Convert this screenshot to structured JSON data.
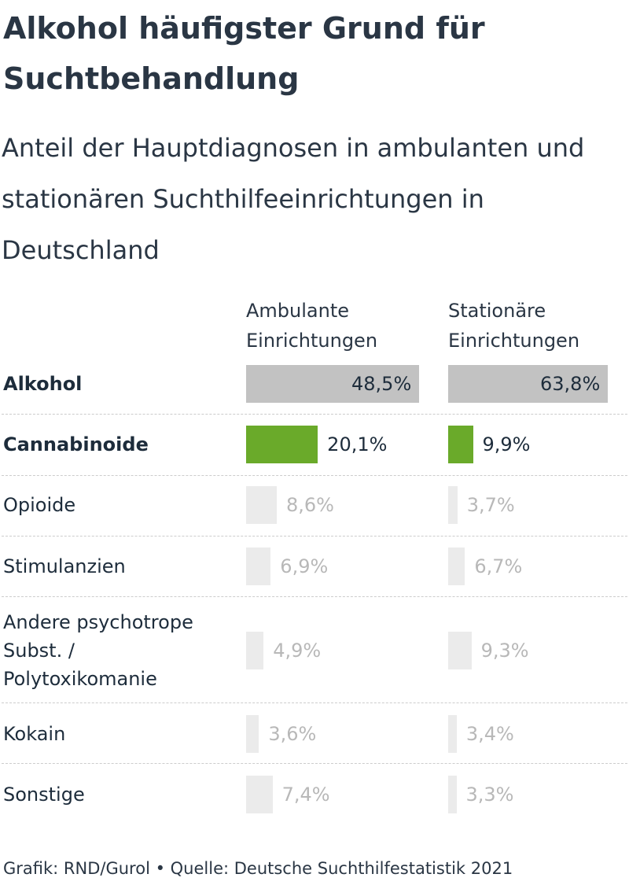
{
  "chart_data": {
    "type": "bar-table",
    "title": "Alkohol häufigster Grund für Suchtbehandlung",
    "subtitle": "Anteil der Hauptdiagnosen in ambulanten und stationären Suchthilfeeinrichtungen in Deutschland",
    "categories": [
      "Alkohol",
      "Cannabinoide",
      "Opioide",
      "Stimulanzien",
      "Andere psychotrope Subst. / Polytoxikomanie",
      "Kokain",
      "Sonstige"
    ],
    "bold_categories": [
      0,
      1
    ],
    "series": [
      {
        "name": "Ambulante Einrichtungen",
        "xlim": [
          0,
          48.5
        ],
        "colors": [
          "#c2c2c2",
          "#6aaa2a",
          "#ebebeb",
          "#ebebeb",
          "#ebebeb",
          "#ebebeb",
          "#ebebeb"
        ],
        "values": [
          48.5,
          20.1,
          8.6,
          6.9,
          4.9,
          3.6,
          7.4
        ],
        "value_labels": [
          "48,5%",
          "20,1%",
          "8,6%",
          "6,9%",
          "4,9%",
          "3,6%",
          "7,4%"
        ]
      },
      {
        "name": "Stationäre Einrichtungen",
        "xlim": [
          0,
          63.8
        ],
        "colors": [
          "#c2c2c2",
          "#6aaa2a",
          "#ebebeb",
          "#ebebeb",
          "#ebebeb",
          "#ebebeb",
          "#ebebeb"
        ],
        "values": [
          63.8,
          9.9,
          3.7,
          6.7,
          9.3,
          3.4,
          3.3
        ],
        "value_labels": [
          "63,8%",
          "9,9%",
          "3,7%",
          "6,7%",
          "9,3%",
          "3,4%",
          "3,3%"
        ]
      }
    ],
    "source": "Grafik: RND/Gurol • Quelle: Deutsche Suchthilfestatistik 2021"
  }
}
